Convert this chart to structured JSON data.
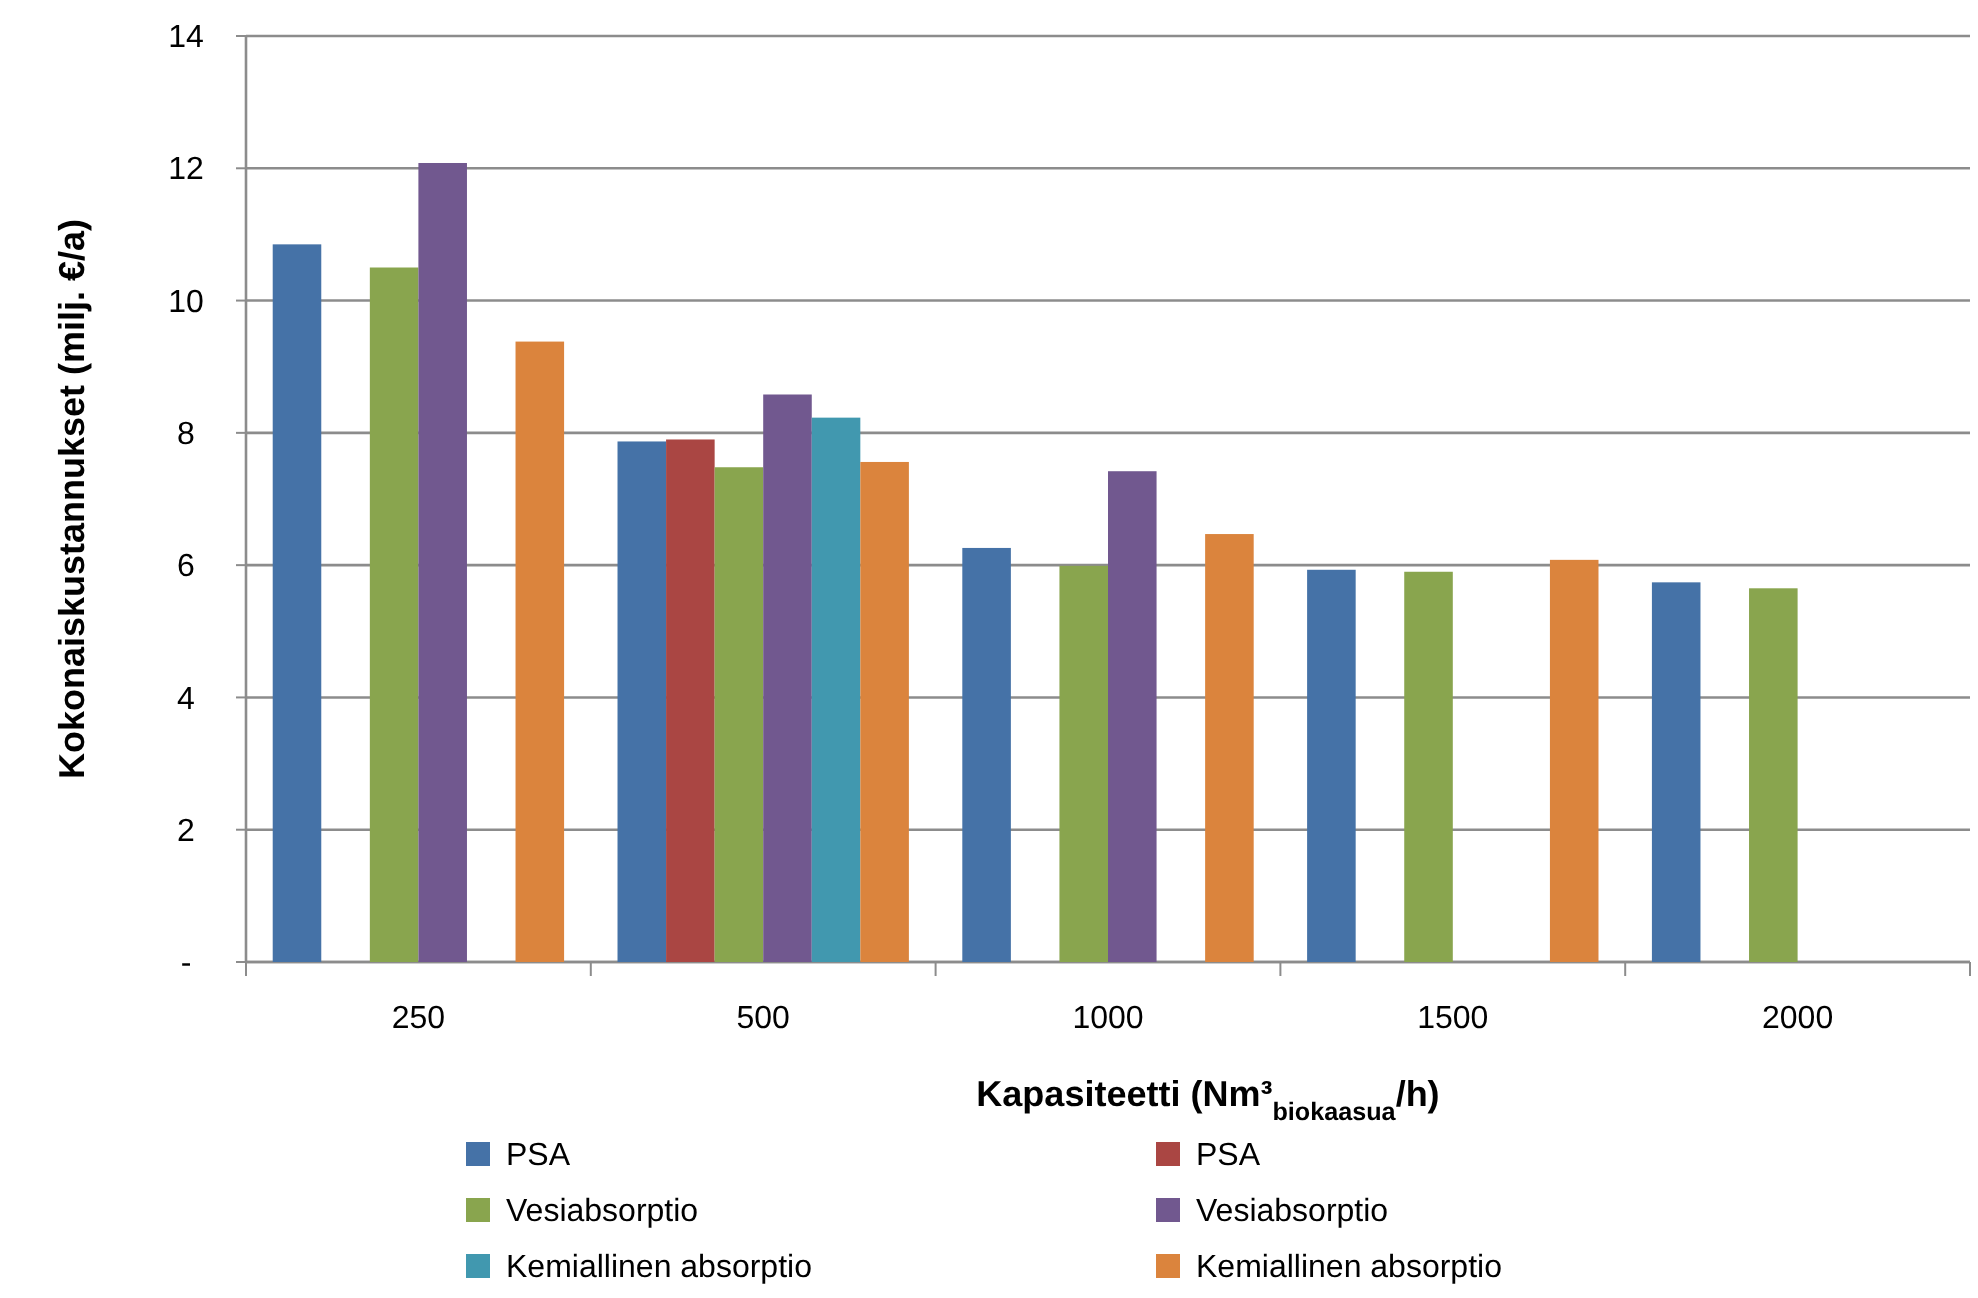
{
  "chart_data": {
    "type": "bar",
    "xlabel": "Kapasiteetti (Nm³$_{biokaasua}$/h)",
    "ylabel": "Kokonaiskustannukset (milj. €/a)",
    "categories": [
      "250",
      "500",
      "1000",
      "1500",
      "2000"
    ],
    "series": [
      {
        "name": "PSA",
        "color": "#4572a7",
        "values": [
          10.85,
          7.87,
          6.26,
          5.93,
          5.74
        ]
      },
      {
        "name": "PSA",
        "color": "#aa4643",
        "values": [
          null,
          7.9,
          null,
          null,
          null
        ]
      },
      {
        "name": "Vesiabsorptio",
        "color": "#89a54e",
        "values": [
          10.5,
          7.48,
          5.99,
          5.9,
          5.65
        ]
      },
      {
        "name": "Vesiabsorptio",
        "color": "#71588f",
        "values": [
          12.08,
          8.58,
          7.42,
          null,
          null
        ]
      },
      {
        "name": "Kemiallinen absorptio",
        "color": "#4198af",
        "values": [
          null,
          8.23,
          null,
          null,
          null
        ]
      },
      {
        "name": "Kemiallinen absorptio",
        "color": "#db843d",
        "values": [
          9.38,
          7.56,
          6.47,
          6.08,
          null
        ]
      }
    ],
    "ylim": [
      0,
      14
    ],
    "yticks": [
      {
        "value": 0,
        "label": "-"
      },
      2,
      4,
      6,
      8,
      10,
      12,
      14
    ],
    "grid": "y",
    "legend": "bottom"
  }
}
